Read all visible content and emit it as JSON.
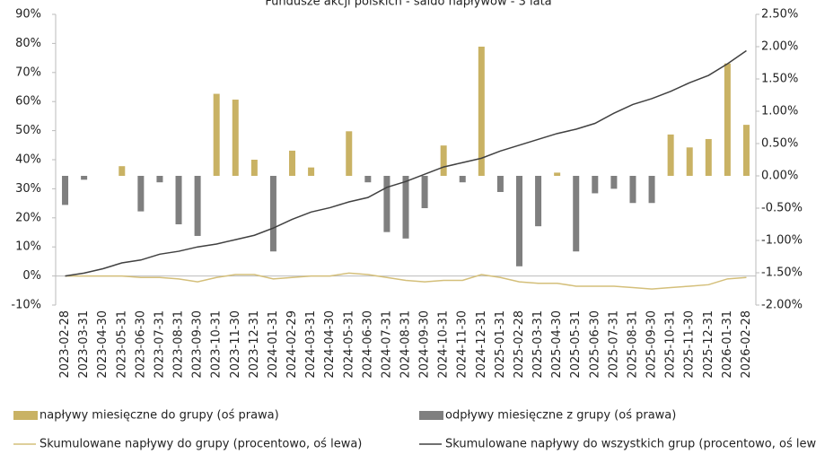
{
  "chart_data": {
    "type": "bar-line",
    "title": "Fundusze akcji polskich - saldo napływów - 3 lata",
    "categories": [
      "2023-02-28",
      "2023-03-31",
      "2023-04-30",
      "2023-05-31",
      "2023-06-30",
      "2023-07-31",
      "2023-08-31",
      "2023-09-30",
      "2023-10-31",
      "2023-11-30",
      "2023-12-31",
      "2024-01-31",
      "2024-02-29",
      "2024-03-31",
      "2024-04-30",
      "2024-05-31",
      "2024-06-30",
      "2024-07-31",
      "2024-08-31",
      "2024-09-30",
      "2024-10-31",
      "2024-11-30",
      "2024-12-31",
      "2025-01-31",
      "2025-02-28",
      "2025-03-31",
      "2025-04-30",
      "2025-05-31",
      "2025-06-30",
      "2025-07-31",
      "2025-08-31",
      "2025-09-30",
      "2025-10-31",
      "2025-11-30",
      "2025-12-31",
      "2026-01-31",
      "2026-02-28"
    ],
    "series": [
      {
        "name": "napływy miesięczne do grupy (oś prawa)",
        "kind": "bar",
        "axis": "y2",
        "color": "#c9b264",
        "values": [
          null,
          null,
          null,
          0.15,
          null,
          null,
          null,
          null,
          1.27,
          1.18,
          0.25,
          null,
          0.39,
          0.13,
          null,
          0.69,
          null,
          null,
          null,
          null,
          0.47,
          null,
          2.0,
          null,
          null,
          null,
          0.05,
          null,
          null,
          null,
          null,
          null,
          0.64,
          0.44,
          0.57,
          1.74,
          0.79
        ]
      },
      {
        "name": "odpływy miesięczne z grupy (oś prawa)",
        "kind": "bar",
        "axis": "y2",
        "color": "#7f7f7f",
        "values": [
          -0.45,
          -0.06,
          null,
          null,
          -0.55,
          -0.1,
          -0.75,
          -0.93,
          null,
          null,
          null,
          -1.17,
          null,
          null,
          null,
          null,
          -0.1,
          -0.87,
          -0.97,
          -0.5,
          null,
          -0.1,
          null,
          -0.25,
          -1.4,
          -0.78,
          null,
          -1.17,
          -0.27,
          -0.2,
          -0.42,
          -0.42,
          null,
          null,
          null,
          null,
          null
        ]
      },
      {
        "name": "Skumulowane napływy do grupy (procentowo, oś lewa)",
        "kind": "line",
        "axis": "y",
        "color": "#d4bf7a",
        "values": [
          0,
          0,
          0,
          0,
          -0.5,
          -0.5,
          -1,
          -2,
          -0.5,
          0.5,
          0.5,
          -1,
          -0.5,
          0,
          0,
          1,
          0.5,
          -0.5,
          -1.5,
          -2,
          -1.5,
          -1.5,
          0.5,
          -0.5,
          -2,
          -2.5,
          -2.5,
          -3.5,
          -3.5,
          -3.5,
          -4,
          -4.5,
          -4,
          -3.5,
          -3,
          -1,
          -0.5
        ]
      },
      {
        "name": "Skumulowane napływy do wszystkich grup (procentowo, oś lewa)",
        "kind": "line",
        "axis": "y",
        "color": "#404040",
        "values": [
          0,
          1,
          2.5,
          4.5,
          5.5,
          7.5,
          8.5,
          10,
          11,
          12.5,
          14,
          16.5,
          19.5,
          22,
          23.5,
          25.5,
          27,
          30.5,
          32.5,
          35,
          37.5,
          39,
          40.5,
          43,
          45,
          47,
          49,
          50.5,
          52.5,
          56,
          59,
          61,
          63.5,
          66.5,
          69,
          73,
          77.5
        ]
      }
    ],
    "ylim": [
      -10,
      90
    ],
    "yticks": [
      {
        "value": -10,
        "label": "-10%"
      },
      {
        "value": 0,
        "label": "0%"
      },
      {
        "value": 10,
        "label": "10%"
      },
      {
        "value": 20,
        "label": "20%"
      },
      {
        "value": 30,
        "label": "30%"
      },
      {
        "value": 40,
        "label": "40%"
      },
      {
        "value": 50,
        "label": "50%"
      },
      {
        "value": 60,
        "label": "60%"
      },
      {
        "value": 70,
        "label": "70%"
      },
      {
        "value": 80,
        "label": "80%"
      },
      {
        "value": 90,
        "label": "90%"
      }
    ],
    "y2lim": [
      -2,
      2.5
    ],
    "y2ticks": [
      {
        "value": -2,
        "label": "-2.00%"
      },
      {
        "value": -1.5,
        "label": "-1.50%"
      },
      {
        "value": -1,
        "label": "-1.00%"
      },
      {
        "value": -0.5,
        "label": "-0.50%"
      },
      {
        "value": 0,
        "label": "0.00%"
      },
      {
        "value": 0.5,
        "label": "0.50%"
      },
      {
        "value": 1,
        "label": "1.00%"
      },
      {
        "value": 1.5,
        "label": "1.50%"
      },
      {
        "value": 2,
        "label": "2.00%"
      },
      {
        "value": 2.5,
        "label": "2.50%"
      }
    ]
  }
}
